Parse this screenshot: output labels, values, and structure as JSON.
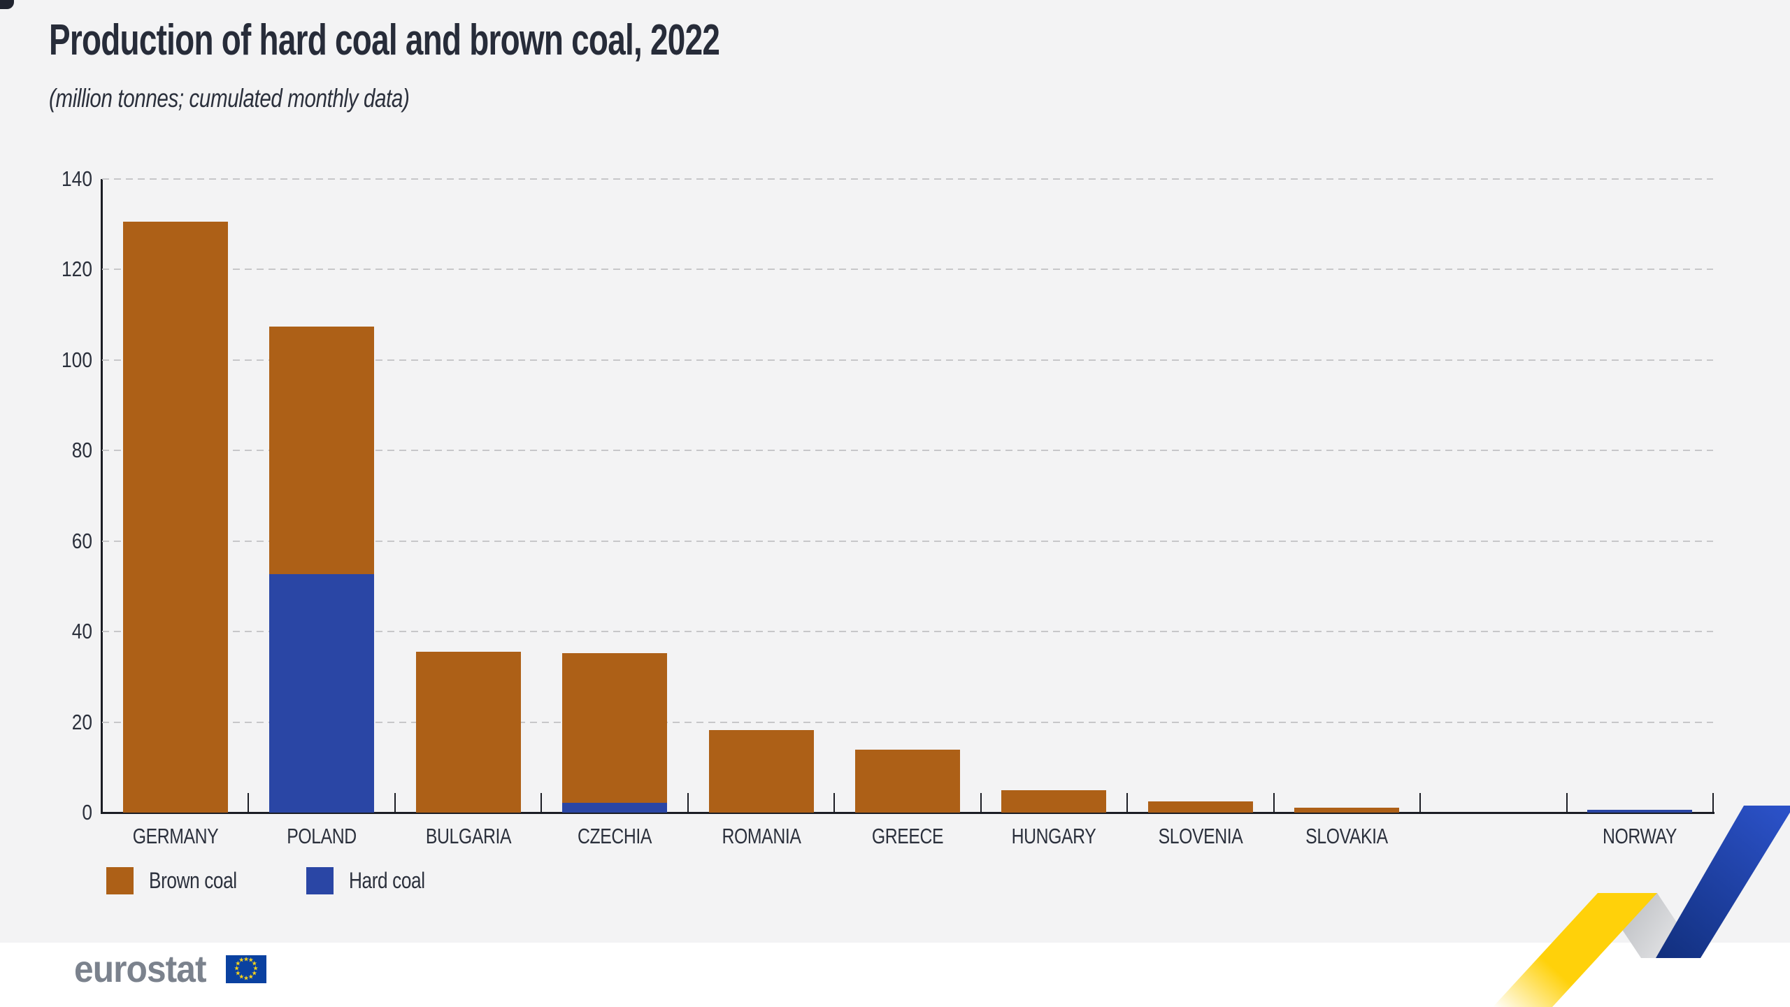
{
  "title": "Production of hard coal and brown coal, 2022",
  "subtitle": "(million tonnes; cumulated monthly data)",
  "chart_data": {
    "type": "bar",
    "stacked": true,
    "categories": [
      "GERMANY",
      "POLAND",
      "BULGARIA",
      "CZECHIA",
      "ROMANIA",
      "GREECE",
      "HUNGARY",
      "SLOVENIA",
      "SLOVAKIA",
      "",
      "NORWAY"
    ],
    "series": [
      {
        "name": "Hard coal",
        "color": "#2a46a5",
        "values": [
          0,
          52.7,
          0,
          2.1,
          0,
          0,
          0,
          0,
          0,
          0,
          0.6
        ]
      },
      {
        "name": "Brown coal",
        "color": "#ad6017",
        "values": [
          130.6,
          54.7,
          35.6,
          33.2,
          18.3,
          13.9,
          5.0,
          2.5,
          1.1,
          0,
          0
        ]
      }
    ],
    "stack_order_note": "Hard coal drawn at bottom of stack, Brown coal on top",
    "title": "Production of hard coal and brown coal, 2022",
    "subtitle": "(million tonnes; cumulated monthly data)",
    "xlabel": "",
    "ylabel": "",
    "ylim": [
      0,
      140
    ],
    "yticks": [
      0,
      20,
      40,
      60,
      80,
      100,
      120,
      140
    ],
    "grid": "dashed horizontal",
    "legend_position": "bottom-left",
    "legend": [
      {
        "label": "Brown coal",
        "color": "#ad6017"
      },
      {
        "label": "Hard coal",
        "color": "#2a46a5"
      }
    ]
  },
  "footer": {
    "logo_text": "eurostat",
    "flag_icon": "eu-flag-icon",
    "zigzag_icon": "eurostat-zigzag-graphic"
  },
  "colors": {
    "background": "#f3f3f4",
    "footer_background": "#ffffff",
    "brown_coal": "#ad6017",
    "hard_coal": "#2a46a5",
    "axis": "#1b1d24",
    "gridline": "#c7c7c9",
    "text": "#272c39",
    "logo_gray": "#7b828d",
    "flag_blue": "#0a41a0",
    "star_yellow": "#ffd617",
    "zigzag_yellow": "#ffd10a",
    "zigzag_blue_light": "#2b51c7",
    "zigzag_blue_dark": "#12307f"
  }
}
